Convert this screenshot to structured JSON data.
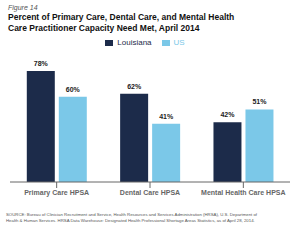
{
  "chart_data": {
    "type": "bar",
    "title": "Percent of Primary Care, Dental Care, and Mental Health\nCare Practitioner Capacity Need Met, April 2014",
    "annotations": [
      "Figure 14",
      "SOURCE: Bureau of Clinician Recruitment and Service, Health Resources and Services Administration (HRSA), U.S. Department of\nHealth & Human Services. HRSA Data Warehouse: Designated Health Professional Shortage Areas Statistics, as of April 28, 2014."
    ],
    "categories": [
      "Primary Care HPSA",
      "Dental Care HPSA",
      "Mental Health Care HPSA"
    ],
    "series": [
      {
        "name": "Louisiana",
        "color": "#1c2b4a",
        "values": [
          78,
          62,
          42
        ],
        "value_labels": [
          "78%",
          "62%",
          "42%"
        ]
      },
      {
        "name": "US",
        "color": "#7bc8e8",
        "values": [
          60,
          41,
          51
        ],
        "value_labels": [
          "60%",
          "41%",
          "51%"
        ]
      }
    ],
    "ylim": [
      0,
      90
    ],
    "data_labels": true,
    "tick_labels": "x",
    "legend": "top",
    "grid": false
  }
}
